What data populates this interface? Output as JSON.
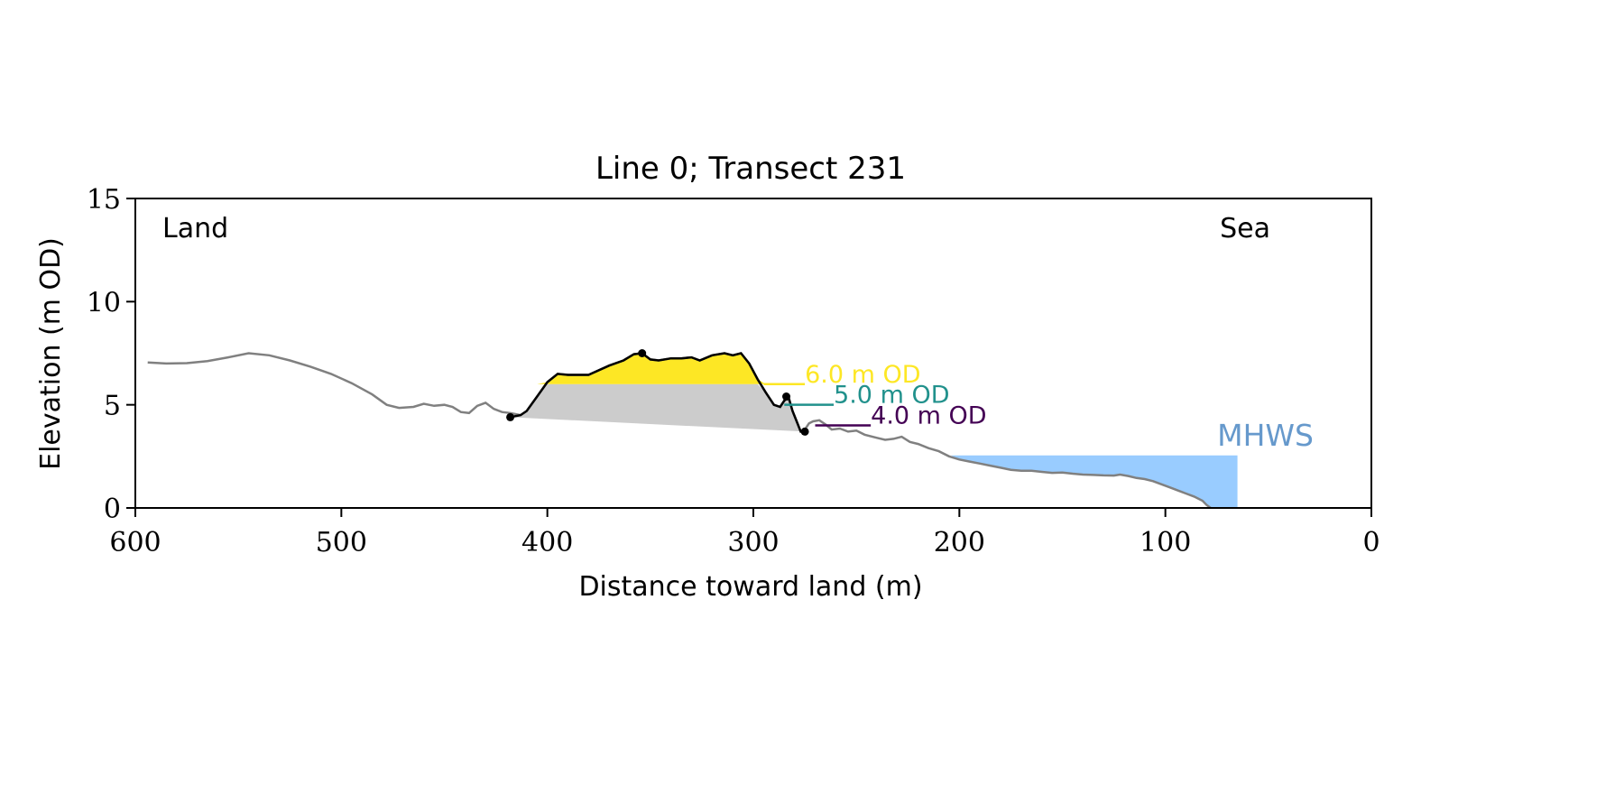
{
  "chart_data": {
    "type": "area",
    "title": "Line 0; Transect 231",
    "xlabel": "Distance toward land (m)",
    "ylabel": "Elevation (m OD)",
    "xlim": [
      600,
      0
    ],
    "ylim": [
      0,
      15
    ],
    "xticks": [
      600,
      500,
      400,
      300,
      200,
      100,
      0
    ],
    "yticks": [
      0,
      5,
      10,
      15
    ],
    "grid": false,
    "annotations": {
      "land": "Land",
      "sea": "Sea",
      "mhws": "MHWS"
    },
    "contours": [
      {
        "label": "6.0 m OD",
        "elevation": 6.0,
        "x_from": 295,
        "x_to": 275,
        "color": "#fde725"
      },
      {
        "label": "5.0 m OD",
        "elevation": 5.0,
        "x_from": 285,
        "x_to": 261,
        "color": "#21918c"
      },
      {
        "label": "4.0 m OD",
        "elevation": 4.0,
        "x_from": 270,
        "x_to": 243,
        "color": "#440154"
      }
    ],
    "mhws": {
      "elevation": 2.55,
      "x_from": 204,
      "x_to": 65,
      "color": "#99ccff",
      "label_color": "#6699cc"
    },
    "profile": {
      "color": "#808080",
      "x": [
        594,
        585,
        575,
        565,
        555,
        545,
        535,
        525,
        515,
        505,
        495,
        485,
        478,
        472,
        465,
        460,
        455,
        450,
        446,
        442,
        438,
        434,
        430,
        426,
        422,
        418,
        413,
        410,
        405,
        400,
        395,
        390,
        380,
        370,
        363,
        358,
        354,
        350,
        346,
        340,
        335,
        330,
        326,
        320,
        314,
        310,
        306,
        302,
        298,
        294,
        290,
        287,
        285,
        283,
        281,
        279,
        277,
        275,
        273,
        271,
        268,
        265,
        262,
        258,
        254,
        250,
        246,
        240,
        236,
        232,
        228,
        224,
        220,
        215,
        210,
        205,
        200,
        195,
        190,
        185,
        180,
        175,
        170,
        165,
        160,
        155,
        150,
        145,
        140,
        135,
        130,
        125,
        122,
        118,
        114,
        110,
        106,
        102,
        98,
        94,
        90,
        86,
        82,
        80,
        78
      ],
      "y": [
        7.05,
        7.0,
        7.02,
        7.12,
        7.3,
        7.5,
        7.4,
        7.15,
        6.85,
        6.5,
        6.05,
        5.5,
        5.0,
        4.85,
        4.9,
        5.05,
        4.95,
        5.0,
        4.9,
        4.65,
        4.6,
        4.95,
        5.1,
        4.8,
        4.65,
        4.6,
        4.5,
        4.7,
        5.4,
        6.1,
        6.5,
        6.45,
        6.45,
        6.9,
        7.15,
        7.45,
        7.5,
        7.2,
        7.15,
        7.25,
        7.25,
        7.3,
        7.15,
        7.4,
        7.5,
        7.4,
        7.5,
        7.0,
        6.25,
        5.6,
        5.0,
        4.9,
        5.2,
        5.4,
        4.7,
        4.2,
        3.7,
        3.8,
        4.1,
        4.2,
        4.25,
        4.05,
        3.8,
        3.85,
        3.7,
        3.75,
        3.55,
        3.4,
        3.3,
        3.35,
        3.45,
        3.2,
        3.1,
        2.9,
        2.75,
        2.5,
        2.35,
        2.25,
        2.15,
        2.05,
        1.95,
        1.85,
        1.8,
        1.8,
        1.75,
        1.7,
        1.72,
        1.66,
        1.62,
        1.6,
        1.58,
        1.57,
        1.62,
        1.55,
        1.45,
        1.4,
        1.3,
        1.15,
        1.0,
        0.85,
        0.7,
        0.55,
        0.35,
        0.15,
        0.0
      ]
    },
    "dune": {
      "color": "#000000",
      "x": [
        418,
        413,
        410,
        405,
        400,
        395,
        390,
        380,
        370,
        363,
        358,
        354,
        350,
        346,
        340,
        335,
        330,
        326,
        320,
        314,
        310,
        306,
        302,
        298,
        294,
        290,
        287,
        285,
        283,
        281,
        279,
        277,
        275
      ],
      "y": [
        4.4,
        4.5,
        4.7,
        5.4,
        6.1,
        6.5,
        6.45,
        6.45,
        6.9,
        7.15,
        7.45,
        7.5,
        7.2,
        7.15,
        7.25,
        7.25,
        7.3,
        7.15,
        7.4,
        7.5,
        7.4,
        7.5,
        7.0,
        6.25,
        5.6,
        5.0,
        4.9,
        5.2,
        5.4,
        4.7,
        4.2,
        3.7,
        3.7
      ],
      "markers": [
        [
          418,
          4.4
        ],
        [
          354,
          7.5
        ],
        [
          284,
          5.4
        ],
        [
          275,
          3.7
        ]
      ]
    },
    "dune_base": [
      [
        418,
        4.4
      ],
      [
        275,
        3.7
      ]
    ],
    "fills": {
      "above_6m": "#fde725",
      "below_6m": "#cccccc"
    }
  }
}
